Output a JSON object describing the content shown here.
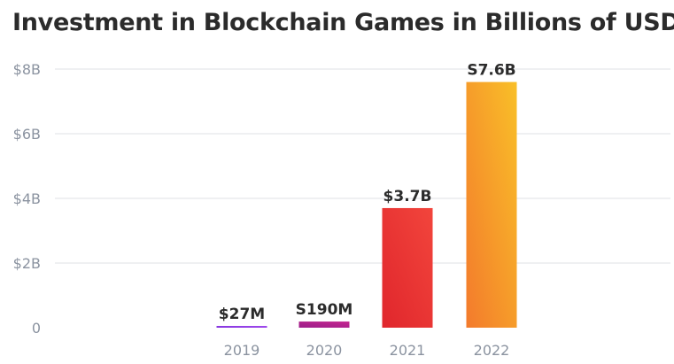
{
  "chart_data": {
    "type": "bar",
    "title": "Investment in Blockchain Games in Billions of USD",
    "xlabel": "",
    "ylabel": "",
    "categories": [
      "2019",
      "2020",
      "2021",
      "2022"
    ],
    "values": [
      0.027,
      0.19,
      3.7,
      7.6
    ],
    "data_labels": [
      "$27M",
      "S190M",
      "$3.7B",
      "S7.6B"
    ],
    "ylim": [
      0,
      8
    ],
    "yticks": [
      0,
      2,
      4,
      6,
      8
    ],
    "ytick_labels": [
      "0",
      "$2B",
      "$4B",
      "$6B",
      "$8B"
    ],
    "grid": true,
    "legend": "none",
    "bar_colors": [
      [
        "#7a2bd9",
        "#a64df0"
      ],
      [
        "#9b1e8a",
        "#c4268f"
      ],
      [
        "#e0262c",
        "#f2453c"
      ],
      [
        "#f37a2c",
        "#f9bf28"
      ]
    ],
    "baseline_gradient": [
      "#9a4fe6",
      "#f6b84a"
    ]
  }
}
